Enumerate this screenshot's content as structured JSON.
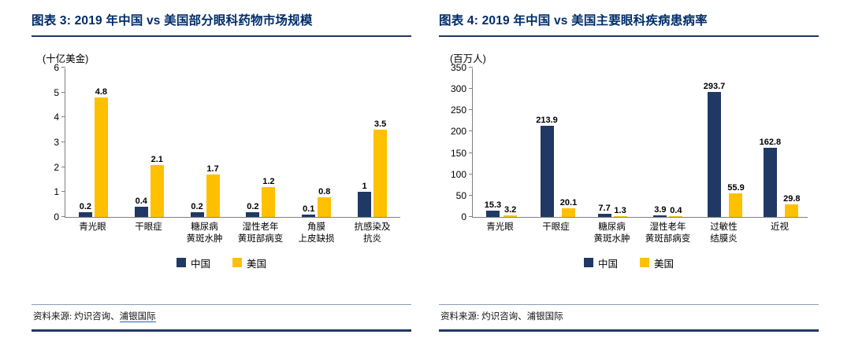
{
  "colors": {
    "china_navy": "#1f3864",
    "us_yellow": "#ffc000",
    "title_navy": "#002c6a",
    "rule_navy": "#203864"
  },
  "chart_data": [
    {
      "type": "bar",
      "title": "图表 3: 2019 年中国 vs 美国部分眼科药物市场规模",
      "unit": "(十亿美金)",
      "ylim": [
        0,
        6
      ],
      "yticks": [
        0,
        1,
        2,
        3,
        4,
        5,
        6
      ],
      "grid": false,
      "legend_position": "bottom",
      "categories": [
        "青光眼",
        "干眼症",
        "糖尿病黄斑水肿",
        "湿性老年黄斑部病变",
        "角膜上皮缺损",
        "抗感染及抗炎"
      ],
      "category_lines": [
        [
          "青光眼"
        ],
        [
          "干眼症"
        ],
        [
          "糖尿病",
          "黄斑水肿"
        ],
        [
          "湿性老年",
          "黄斑部病变"
        ],
        [
          "角膜",
          "上皮缺损"
        ],
        [
          "抗感染及",
          "抗炎"
        ]
      ],
      "series": [
        {
          "name": "中国",
          "color": "#1f3864",
          "values": [
            0.2,
            0.4,
            0.2,
            0.2,
            0.1,
            1
          ]
        },
        {
          "name": "美国",
          "color": "#ffc000",
          "values": [
            4.8,
            2.1,
            1.7,
            1.2,
            0.8,
            3.5
          ]
        }
      ],
      "source_prefix": "资料来源: 灼识咨询、",
      "source_link": "浦银国际",
      "source_link_underlined": true
    },
    {
      "type": "bar",
      "title": "图表 4: 2019 年中国 vs 美国主要眼科疾病患病率",
      "unit": "(百万人)",
      "ylim": [
        0,
        350
      ],
      "yticks": [
        0,
        50,
        100,
        150,
        200,
        250,
        300,
        350
      ],
      "grid": false,
      "legend_position": "bottom",
      "categories": [
        "青光眼",
        "干眼症",
        "糖尿病黄斑水肿",
        "湿性老年黄斑部病变",
        "过敏性结膜炎",
        "近视"
      ],
      "category_lines": [
        [
          "青光眼"
        ],
        [
          "干眼症"
        ],
        [
          "糖尿病",
          "黄斑水肿"
        ],
        [
          "湿性老年",
          "黄斑部病变"
        ],
        [
          "过敏性",
          "结膜炎"
        ],
        [
          "近视"
        ]
      ],
      "series": [
        {
          "name": "中国",
          "color": "#1f3864",
          "values": [
            15.3,
            213.9,
            7.7,
            3.9,
            293.7,
            162.8
          ]
        },
        {
          "name": "美国",
          "color": "#ffc000",
          "values": [
            3.2,
            20.1,
            1.3,
            0.4,
            55.9,
            29.8
          ]
        }
      ],
      "source_prefix": "资料来源: 灼识咨询、",
      "source_link": "浦银国际",
      "source_link_underlined": false
    }
  ]
}
